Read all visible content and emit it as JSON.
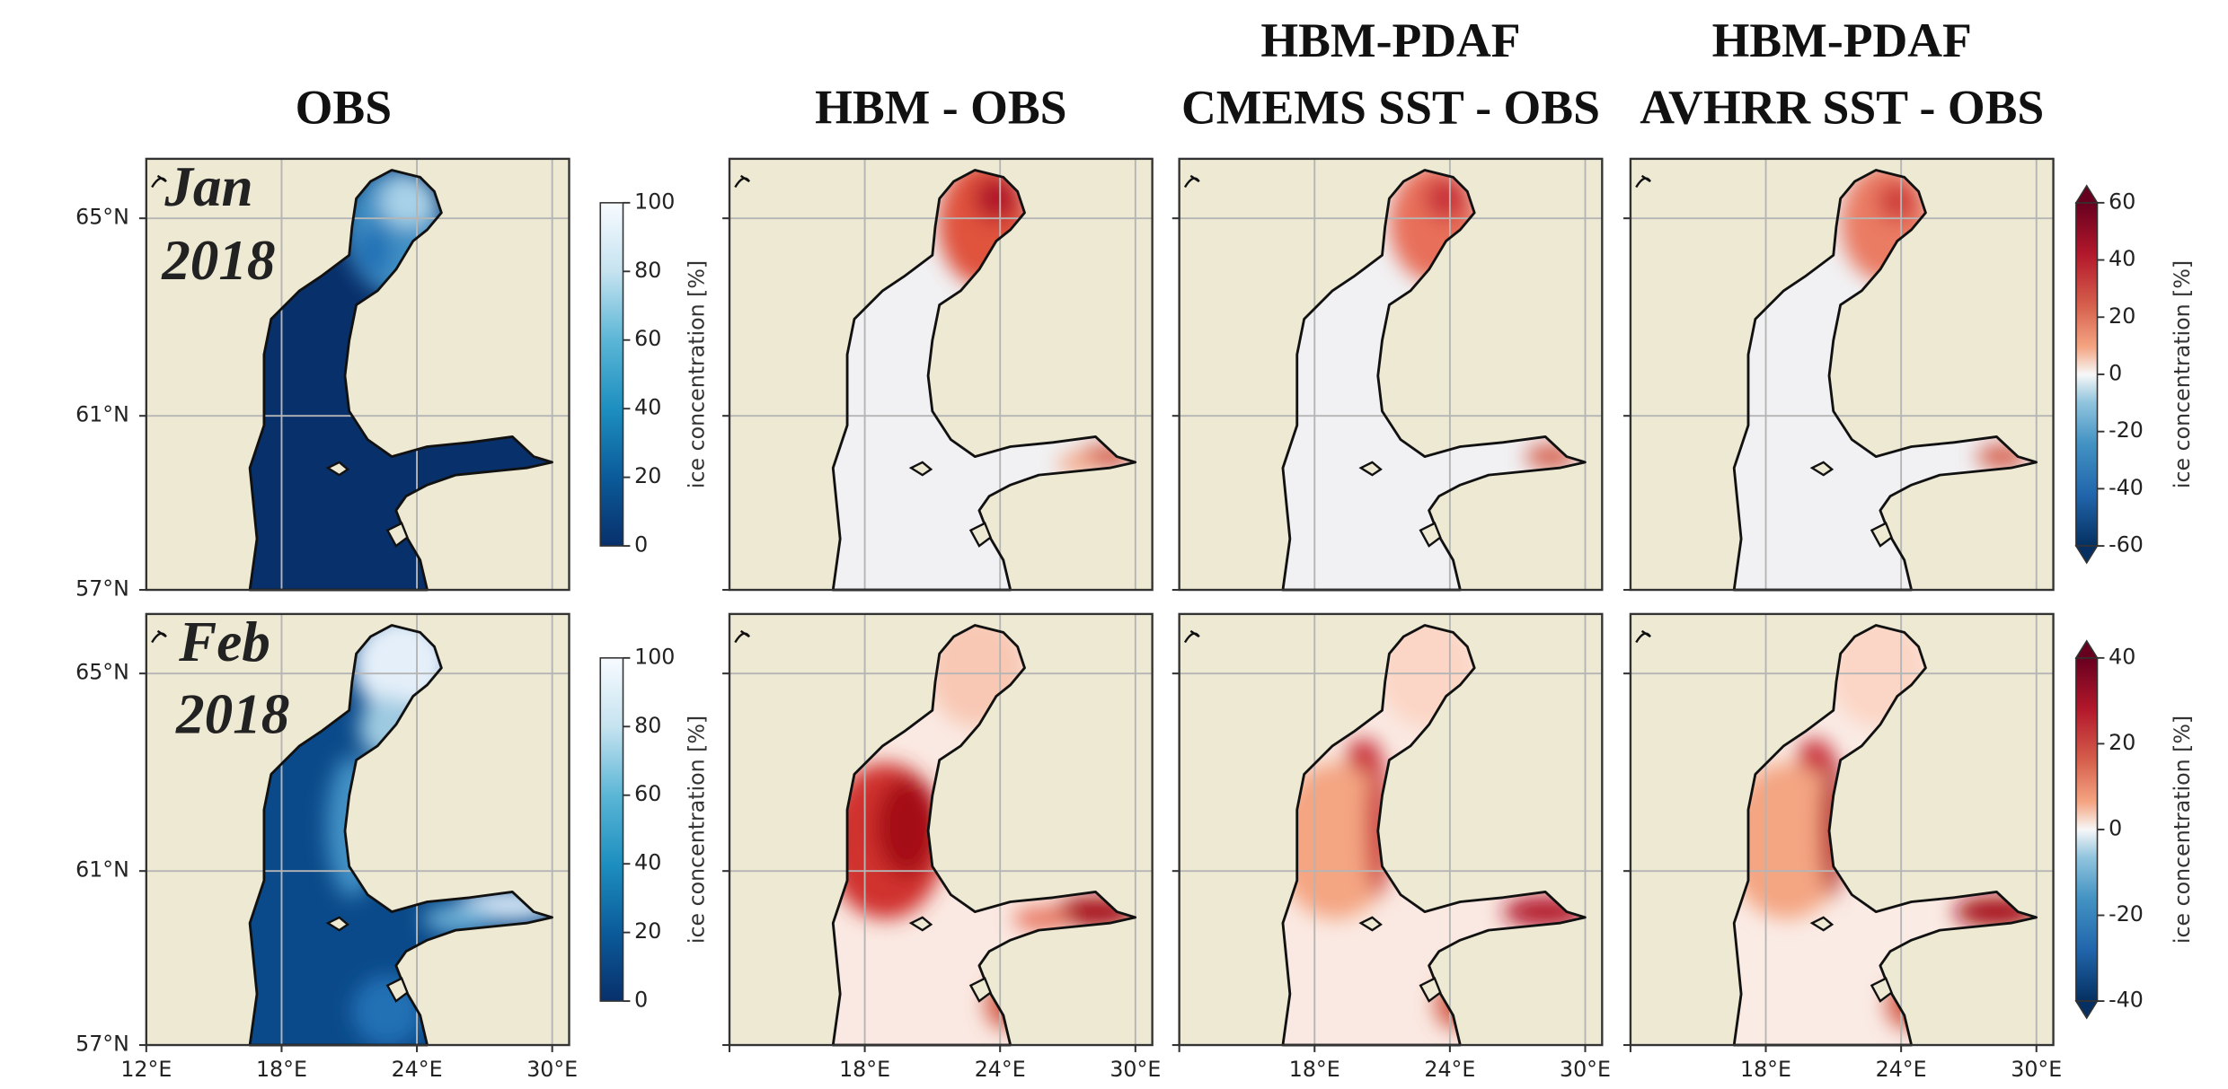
{
  "columns": [
    {
      "title": [
        "OBS"
      ]
    },
    {
      "title": [
        "HBM - OBS"
      ]
    },
    {
      "title": [
        "HBM-PDAF",
        "CMEMS SST - OBS"
      ]
    },
    {
      "title": [
        "HBM-PDAF",
        "AVHRR SST - OBS"
      ]
    }
  ],
  "rows": [
    {
      "label": [
        "Jan",
        "2018"
      ],
      "obs_colorbar": {
        "range": [
          0,
          100
        ],
        "ticks": [
          0,
          20,
          40,
          60,
          80,
          100
        ]
      },
      "diff_colorbar": {
        "range": [
          -60,
          60
        ],
        "ticks": [
          -60,
          -40,
          -20,
          0,
          20,
          40,
          60
        ]
      }
    },
    {
      "label": [
        "Feb",
        "2018"
      ],
      "obs_colorbar": {
        "range": [
          0,
          100
        ],
        "ticks": [
          0,
          20,
          40,
          60,
          80,
          100
        ]
      },
      "diff_colorbar": {
        "range": [
          -40,
          40
        ],
        "ticks": [
          -40,
          -20,
          0,
          20,
          40
        ]
      }
    }
  ],
  "map": {
    "lon_range": [
      12,
      30.75
    ],
    "lat_range": [
      57,
      66.1
    ],
    "lon_ticks": [
      {
        "value": 12,
        "label": "12°E"
      },
      {
        "value": 18,
        "label": "18°E"
      },
      {
        "value": 24,
        "label": "24°E"
      },
      {
        "value": 30,
        "label": "30°E"
      }
    ],
    "lat_ticks": [
      {
        "value": 57,
        "label": "57°N"
      },
      {
        "value": 61,
        "label": "61°N"
      },
      {
        "value": 65,
        "label": "65°N"
      }
    ]
  },
  "colorbar_label": "ice concentration [%]"
}
